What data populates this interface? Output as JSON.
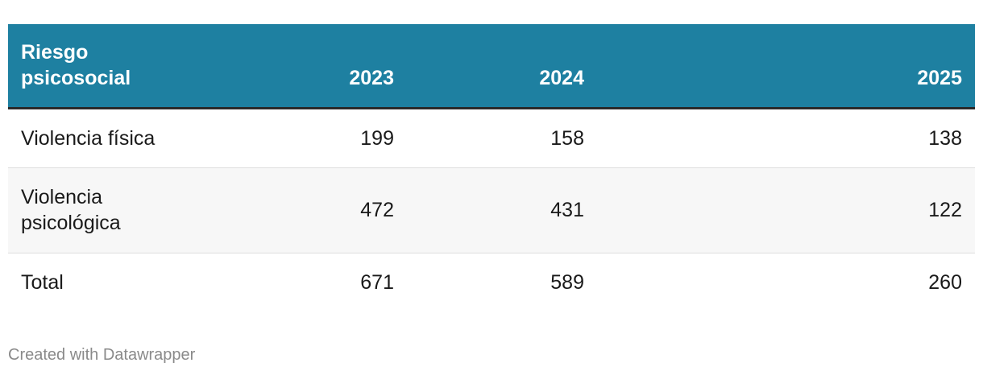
{
  "table": {
    "header": [
      "Riesgo psicosocial",
      "2023",
      "2024",
      "2025"
    ],
    "rows": [
      [
        "Violencia física",
        199,
        158,
        138
      ],
      [
        "Violencia psicológica",
        472,
        431,
        122
      ],
      [
        "Total",
        671,
        589,
        260
      ]
    ]
  },
  "footer": "Created with Datawrapper"
}
